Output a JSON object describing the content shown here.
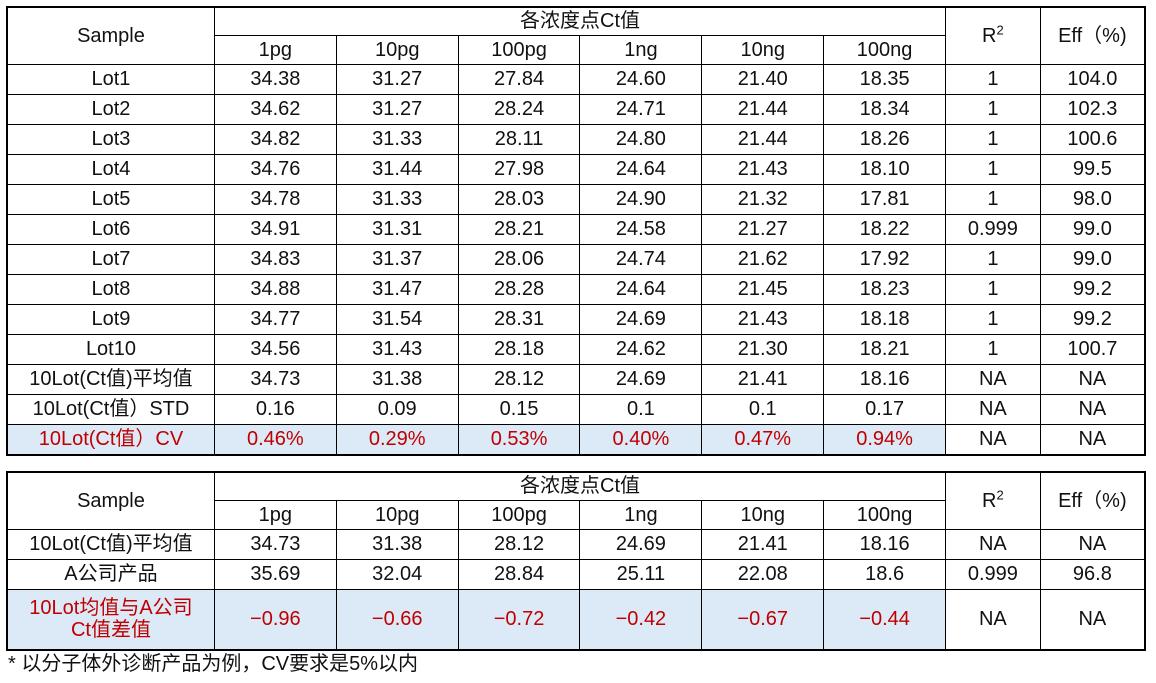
{
  "table1": {
    "sample_header": "Sample",
    "span_header": "各浓度点Ct值",
    "r2_header_base": "R",
    "r2_header_sup": "2",
    "eff_header": "Eff（%)",
    "units": [
      "1pg",
      "10pg",
      "100pg",
      "1ng",
      "10ng",
      "100ng"
    ],
    "rows": [
      {
        "label": "Lot1",
        "values": [
          "34.38",
          "31.27",
          "27.84",
          "24.60",
          "21.40",
          "18.35"
        ],
        "r2": "1",
        "eff": "104.0"
      },
      {
        "label": "Lot2",
        "values": [
          "34.62",
          "31.27",
          "28.24",
          "24.71",
          "21.44",
          "18.34"
        ],
        "r2": "1",
        "eff": "102.3"
      },
      {
        "label": "Lot3",
        "values": [
          "34.82",
          "31.33",
          "28.11",
          "24.80",
          "21.44",
          "18.26"
        ],
        "r2": "1",
        "eff": "100.6"
      },
      {
        "label": "Lot4",
        "values": [
          "34.76",
          "31.44",
          "27.98",
          "24.64",
          "21.43",
          "18.10"
        ],
        "r2": "1",
        "eff": "99.5"
      },
      {
        "label": "Lot5",
        "values": [
          "34.78",
          "31.33",
          "28.03",
          "24.90",
          "21.32",
          "17.81"
        ],
        "r2": "1",
        "eff": "98.0"
      },
      {
        "label": "Lot6",
        "values": [
          "34.91",
          "31.31",
          "28.21",
          "24.58",
          "21.27",
          "18.22"
        ],
        "r2": "0.999",
        "eff": "99.0"
      },
      {
        "label": "Lot7",
        "values": [
          "34.83",
          "31.37",
          "28.06",
          "24.74",
          "21.62",
          "17.92"
        ],
        "r2": "1",
        "eff": "99.0"
      },
      {
        "label": "Lot8",
        "values": [
          "34.88",
          "31.47",
          "28.28",
          "24.64",
          "21.45",
          "18.23"
        ],
        "r2": "1",
        "eff": "99.2"
      },
      {
        "label": "Lot9",
        "values": [
          "34.77",
          "31.54",
          "28.31",
          "24.69",
          "21.43",
          "18.18"
        ],
        "r2": "1",
        "eff": "99.2"
      },
      {
        "label": "Lot10",
        "values": [
          "34.56",
          "31.43",
          "28.18",
          "24.62",
          "21.30",
          "18.21"
        ],
        "r2": "1",
        "eff": "100.7"
      },
      {
        "label": "10Lot(Ct值)平均值",
        "values": [
          "34.73",
          "31.38",
          "28.12",
          "24.69",
          "21.41",
          "18.16"
        ],
        "r2": "NA",
        "eff": "NA"
      },
      {
        "label": "10Lot(Ct值）STD",
        "values": [
          "0.16",
          "0.09",
          "0.15",
          "0.1",
          "0.1",
          "0.17"
        ],
        "r2": "NA",
        "eff": "NA"
      }
    ],
    "highlight_row": {
      "label": "10Lot(Ct值）CV",
      "values": [
        "0.46%",
        "0.29%",
        "0.53%",
        "0.40%",
        "0.47%",
        "0.94%"
      ],
      "r2": "NA",
      "eff": "NA"
    }
  },
  "table2": {
    "sample_header": "Sample",
    "span_header": "各浓度点Ct值",
    "r2_header_base": "R",
    "r2_header_sup": "2",
    "eff_header": "Eff（%)",
    "units": [
      "1pg",
      "10pg",
      "100pg",
      "1ng",
      "10ng",
      "100ng"
    ],
    "rows": [
      {
        "label": "10Lot(Ct值)平均值",
        "values": [
          "34.73",
          "31.38",
          "28.12",
          "24.69",
          "21.41",
          "18.16"
        ],
        "r2": "NA",
        "eff": "NA"
      },
      {
        "label": "A公司产品",
        "values": [
          "35.69",
          "32.04",
          "28.84",
          "25.11",
          "22.08",
          "18.6"
        ],
        "r2": "0.999",
        "eff": "96.8"
      }
    ],
    "highlight_row": {
      "label_line1": "10Lot均值与A公司",
      "label_line2": "Ct值差值",
      "values": [
        "−0.96",
        "−0.66",
        "−0.72",
        "−0.42",
        "−0.67",
        "−0.44"
      ],
      "r2": "NA",
      "eff": "NA"
    }
  },
  "note": "*   以分子体外诊断产品为例，CV要求是5%以内"
}
